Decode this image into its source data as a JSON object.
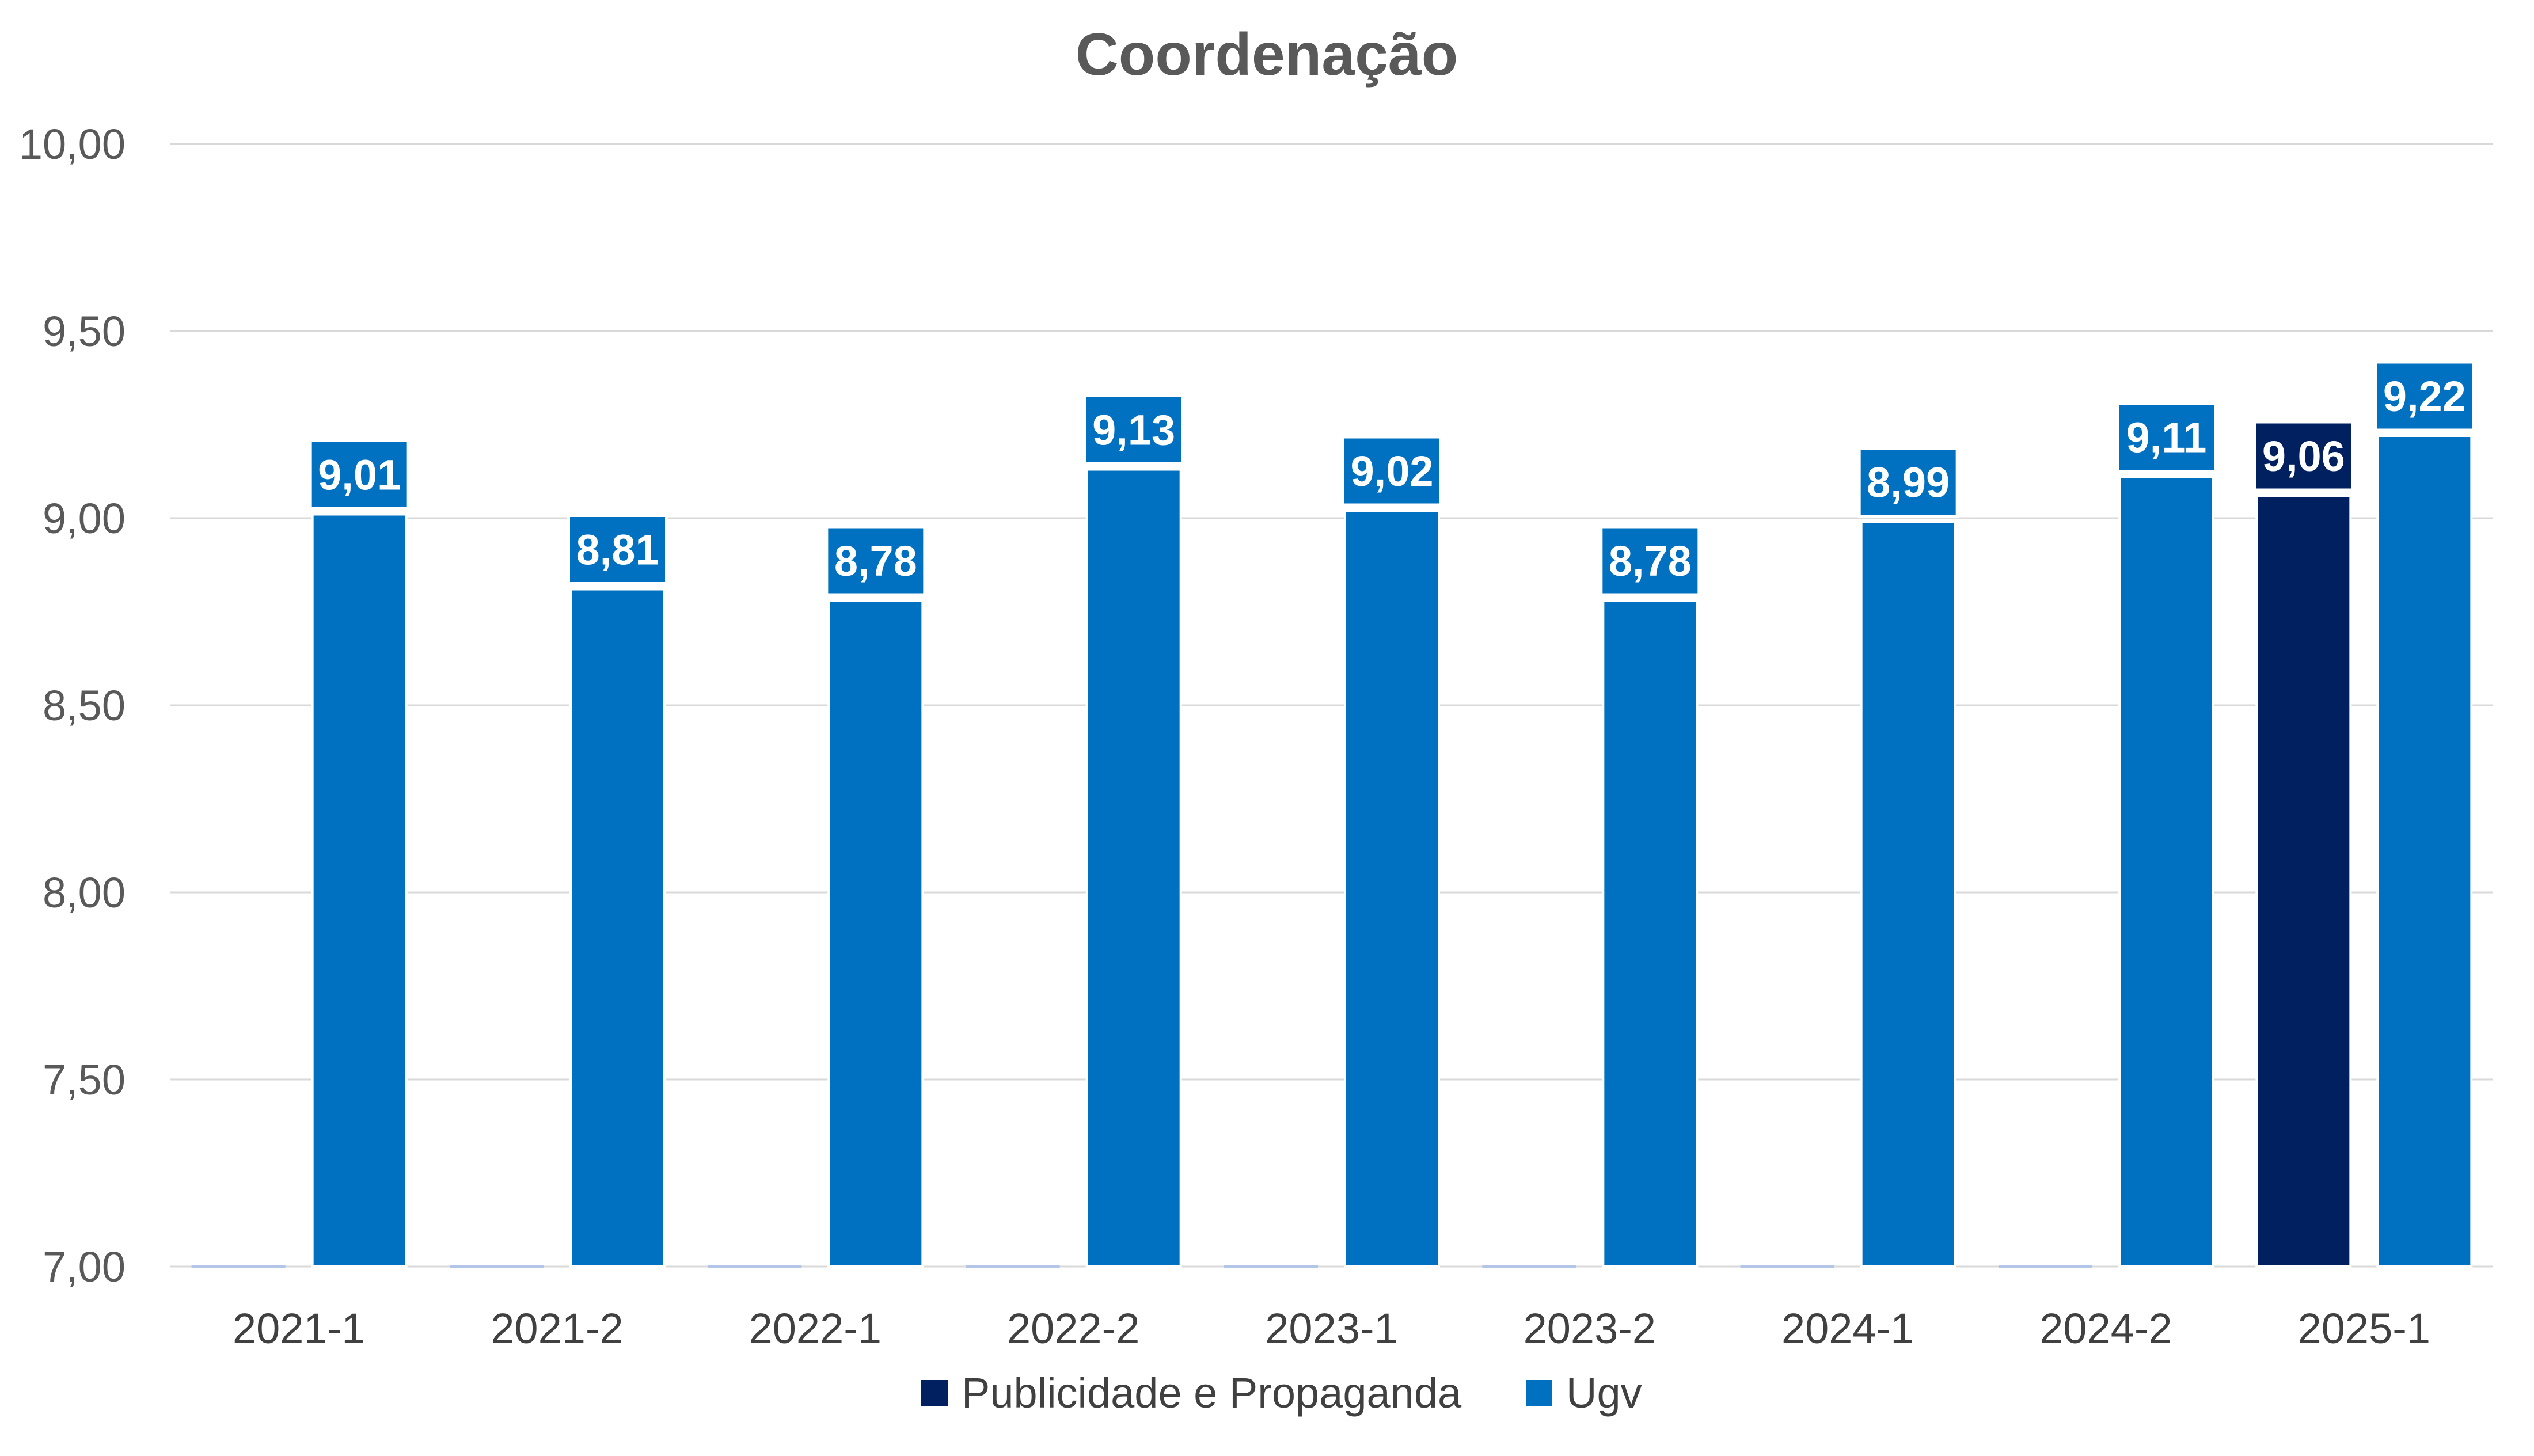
{
  "chart_data": {
    "type": "bar",
    "title": "Coordenação",
    "categories": [
      "2021-1",
      "2021-2",
      "2022-1",
      "2022-2",
      "2023-1",
      "2023-2",
      "2024-1",
      "2024-2",
      "2025-1"
    ],
    "series": [
      {
        "name": "Publicidade e Propaganda",
        "color": "#002060",
        "values": [
          null,
          null,
          null,
          null,
          null,
          null,
          null,
          null,
          9.06
        ],
        "labels": [
          null,
          null,
          null,
          null,
          null,
          null,
          null,
          null,
          "9,06"
        ]
      },
      {
        "name": "Ugv",
        "color": "#0070C0",
        "values": [
          9.01,
          8.81,
          8.78,
          9.13,
          9.02,
          8.78,
          8.99,
          9.11,
          9.22
        ],
        "labels": [
          "9,01",
          "8,81",
          "8,78",
          "9,13",
          "9,02",
          "8,78",
          "8,99",
          "9,11",
          "9,22"
        ]
      }
    ],
    "ylim": [
      7,
      10
    ],
    "yticks": [
      {
        "value": 7.0,
        "label": "7,00"
      },
      {
        "value": 7.5,
        "label": "7,50"
      },
      {
        "value": 8.0,
        "label": "8,00"
      },
      {
        "value": 8.5,
        "label": "8,50"
      },
      {
        "value": 9.0,
        "label": "9,00"
      },
      {
        "value": 9.5,
        "label": "9,50"
      },
      {
        "value": 10.0,
        "label": "10,00"
      }
    ],
    "grid": true,
    "legend_position": "bottom"
  }
}
